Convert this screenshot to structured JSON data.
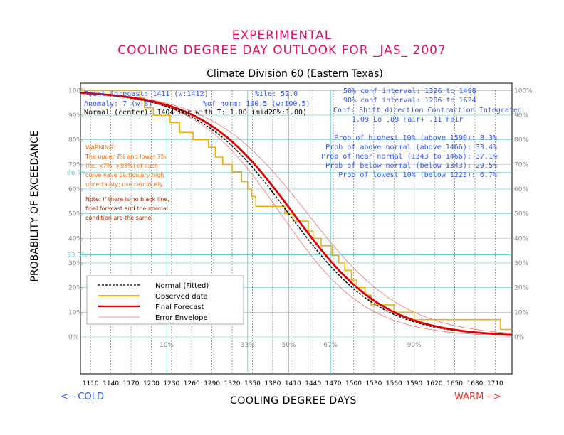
{
  "header": {
    "line1": "EXPERIMENTAL",
    "line2": "COOLING DEGREE DAY OUTLOOK FOR _JAS_ 2007",
    "subtitle": "Climate Division 60 (Eastern Texas)"
  },
  "colors": {
    "title": "#e0106a",
    "blue_text": "#3355ee",
    "cyan": "#66cccc",
    "orange": "#f0b000",
    "red": "#e00000",
    "envelope": "#f07070",
    "warning": "#ff6a00",
    "note": "#aa2200",
    "warm": "#ee3333",
    "cold": "#3355ee"
  },
  "info": {
    "point_forecast": "Point forecast: 1411 (w:1412)",
    "anomaly": "Anomaly: 7 (w:8)",
    "normal_center": "Normal (center): 1404 Cor with T: 1.00 (mid20%:1.00)",
    "ile": "%ile: 52.0",
    "pct_norm": "%of norm:  100.5 (w:100.5)",
    "conf50": "50% conf interval: 1326 to 1498",
    "conf90": "90% conf interval: 1206 to 1624",
    "conf_header": "Conf: Shift direction   Contraction   Integrated",
    "conf_values": "1.09 Lo          .89 Fair+    .11 Fair",
    "prob_highest": "Prob of highest 10% (above 1590): 8.3%",
    "prob_above": "Prob of above normal (above 1466): 33.4%",
    "prob_near": "Prob of near normal (1343 to 1466): 37.1%",
    "prob_below": "Prob of below normal (below 1343): 29.5%",
    "prob_lowest": "Prob of lowest 10% (below 1223): 6.7%"
  },
  "warning": {
    "lines": [
      "WARNING:",
      "The upper 7% and lower 7%",
      "(i.e. <7%, >93%) of each",
      "curve have particulary high",
      "uncertainty; use cautiously."
    ]
  },
  "note": {
    "lines": [
      "Note: If there is no black line,",
      "final forecast and  the normal",
      "condition are the same"
    ]
  },
  "legend": {
    "items": [
      {
        "label": "Normal (Fitted)",
        "color": "#000000",
        "style": "dashed"
      },
      {
        "label": "Observed data",
        "color": "#f0b000",
        "style": "solid"
      },
      {
        "label": "Final Forecast",
        "color": "#e00000",
        "style": "bold"
      },
      {
        "label": "Error Envelope",
        "color": "#f07070",
        "style": "thin"
      }
    ]
  },
  "footer": {
    "cold": "<-- COLD",
    "warm": "WARM -->"
  },
  "chart_data": {
    "type": "line",
    "title": "COOLING DEGREE DAY OUTLOOK FOR _JAS_ 2007",
    "xlabel": "COOLING DEGREE DAYS",
    "ylabel": "PROBABILITY OF EXCEEDANCE",
    "xlim": [
      1095,
      1735
    ],
    "ylim": [
      -15,
      103
    ],
    "x_ticks": [
      1110,
      1140,
      1170,
      1200,
      1230,
      1260,
      1290,
      1320,
      1350,
      1380,
      1410,
      1440,
      1470,
      1500,
      1530,
      1560,
      1590,
      1620,
      1650,
      1680,
      1710
    ],
    "y_ticks": [
      0,
      10,
      20,
      30,
      40,
      50,
      60,
      70,
      80,
      90,
      100
    ],
    "y_tick_labels": [
      "0%",
      "10%",
      "20%",
      "30%",
      "40%",
      "50%",
      "60%",
      "70%",
      "80%",
      "90%",
      "100%"
    ],
    "cyan_levels": [
      {
        "y": 66.7,
        "label": "66.7%"
      },
      {
        "y": 33.3,
        "label": "33.3%"
      }
    ],
    "percentile_markers": [
      {
        "x": 1223,
        "label": "10%"
      },
      {
        "x": 1343,
        "label": "33%"
      },
      {
        "x": 1404,
        "label": "50%"
      },
      {
        "x": 1466,
        "label": "67%"
      },
      {
        "x": 1590,
        "label": "90%"
      }
    ],
    "series": [
      {
        "name": "Normal (Fitted)",
        "kind": "logistic",
        "mean": 1404,
        "scale": 68
      },
      {
        "name": "Final Forecast",
        "kind": "logistic",
        "mean": 1411,
        "scale": 68
      },
      {
        "name": "Error Envelope Upper",
        "kind": "logistic",
        "mean": 1432,
        "scale": 72
      },
      {
        "name": "Error Envelope Lower",
        "kind": "logistic",
        "mean": 1392,
        "scale": 64
      },
      {
        "name": "Observed data",
        "kind": "step",
        "x": [
          1095,
          1183,
          1190,
          1203,
          1228,
          1242,
          1262,
          1285,
          1295,
          1306,
          1320,
          1334,
          1343,
          1349,
          1355,
          1398,
          1410,
          1433,
          1440,
          1452,
          1468,
          1478,
          1487,
          1497,
          1505,
          1517,
          1526,
          1548,
          1560,
          1572,
          1590,
          1622,
          1660,
          1718,
          1735
        ],
        "y": [
          100,
          97,
          93,
          90,
          87,
          83,
          80,
          77,
          73,
          70,
          67,
          63,
          60,
          57,
          53,
          50,
          47,
          43,
          40,
          37,
          33,
          30,
          27,
          23,
          20,
          17,
          13,
          13,
          10,
          10,
          7,
          7,
          7,
          3,
          3
        ]
      }
    ]
  }
}
